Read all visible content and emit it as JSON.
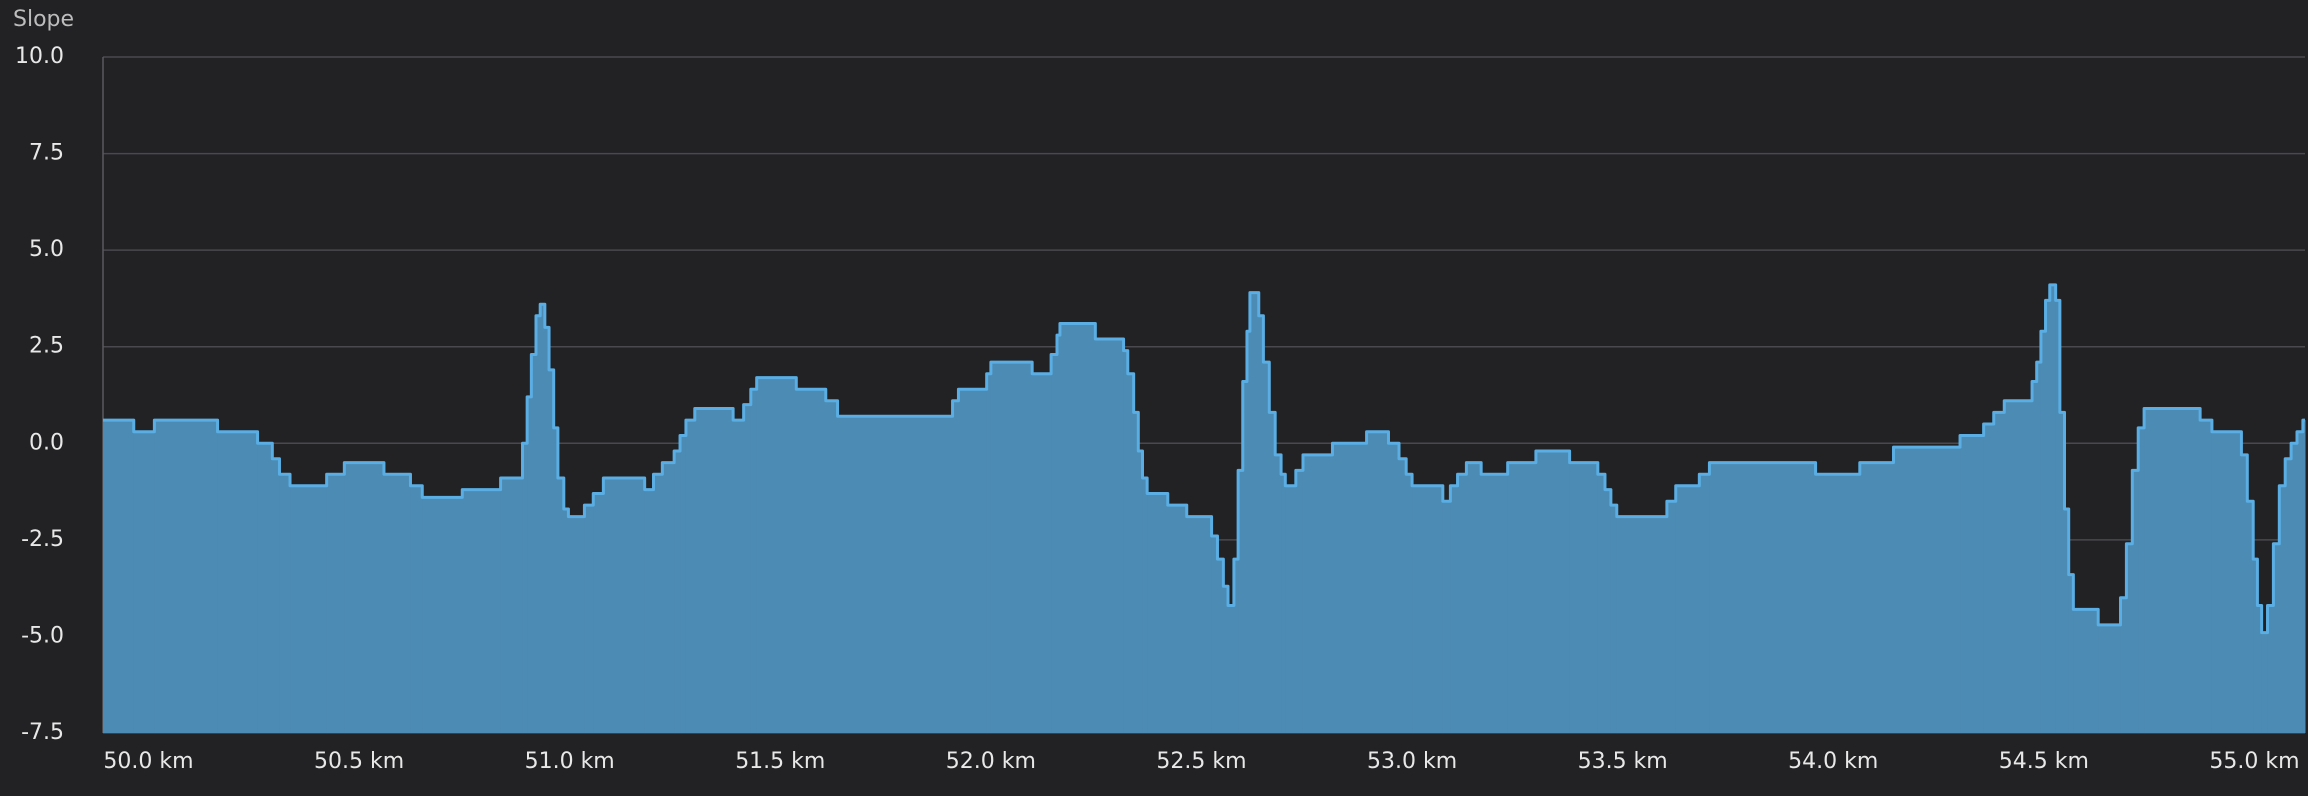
{
  "chart_data": {
    "type": "step-area",
    "ylabel": "Slope",
    "x": [
      49.892,
      49.965,
      50.014,
      50.164,
      50.259,
      50.294,
      50.311,
      50.336,
      50.423,
      50.465,
      50.559,
      50.622,
      50.65,
      50.745,
      50.836,
      50.888,
      50.899,
      50.909,
      50.92,
      50.93,
      50.941,
      50.951,
      50.962,
      50.972,
      50.986,
      50.997,
      51.035,
      51.056,
      51.08,
      51.178,
      51.199,
      51.22,
      51.248,
      51.262,
      51.276,
      51.297,
      51.388,
      51.413,
      51.43,
      51.444,
      51.538,
      51.608,
      51.636,
      51.909,
      51.923,
      51.99,
      52.0,
      52.098,
      52.143,
      52.157,
      52.164,
      52.248,
      52.315,
      52.325,
      52.339,
      52.35,
      52.36,
      52.371,
      52.42,
      52.465,
      52.524,
      52.538,
      52.552,
      52.563,
      52.577,
      52.587,
      52.598,
      52.608,
      52.615,
      52.636,
      52.647,
      52.661,
      52.675,
      52.689,
      52.699,
      52.724,
      52.741,
      52.811,
      52.892,
      52.944,
      52.969,
      52.986,
      53.0,
      53.073,
      53.091,
      53.108,
      53.129,
      53.164,
      53.227,
      53.294,
      53.374,
      53.441,
      53.458,
      53.472,
      53.486,
      53.605,
      53.626,
      53.682,
      53.706,
      53.958,
      54.063,
      54.143,
      54.301,
      54.357,
      54.381,
      54.406,
      54.472,
      54.483,
      54.493,
      54.504,
      54.514,
      54.528,
      54.538,
      54.549,
      54.559,
      54.57,
      54.629,
      54.682,
      54.696,
      54.71,
      54.724,
      54.738,
      54.871,
      54.899,
      54.969,
      54.983,
      54.997,
      55.007,
      55.017,
      55.031,
      55.045,
      55.059,
      55.073,
      55.087,
      55.101,
      55.115
    ],
    "series": [
      {
        "name": "Slope",
        "color": "#5aaee3",
        "fill": "#4c8bb4",
        "values": [
          0.6,
          0.3,
          0.6,
          0.3,
          0.0,
          -0.4,
          -0.8,
          -1.1,
          -0.8,
          -0.5,
          -0.8,
          -1.1,
          -1.4,
          -1.2,
          -0.9,
          0.0,
          1.2,
          2.3,
          3.3,
          3.6,
          3.0,
          1.9,
          0.4,
          -0.9,
          -1.7,
          -1.9,
          -1.6,
          -1.3,
          -0.9,
          -1.2,
          -0.8,
          -0.5,
          -0.2,
          0.2,
          0.6,
          0.9,
          0.6,
          1.0,
          1.4,
          1.7,
          1.4,
          1.1,
          0.7,
          1.1,
          1.4,
          1.8,
          2.1,
          1.8,
          2.3,
          2.8,
          3.1,
          2.7,
          2.4,
          1.8,
          0.8,
          -0.2,
          -0.9,
          -1.3,
          -1.6,
          -1.9,
          -2.4,
          -3.0,
          -3.7,
          -4.2,
          -3.0,
          -0.7,
          1.6,
          2.9,
          3.9,
          3.3,
          2.1,
          0.8,
          -0.3,
          -0.8,
          -1.1,
          -0.7,
          -0.3,
          0.0,
          0.3,
          0.0,
          -0.4,
          -0.8,
          -1.1,
          -1.5,
          -1.1,
          -0.8,
          -0.5,
          -0.8,
          -0.5,
          -0.2,
          -0.5,
          -0.8,
          -1.2,
          -1.6,
          -1.9,
          -1.5,
          -1.1,
          -0.8,
          -0.5,
          -0.8,
          -0.5,
          -0.1,
          0.2,
          0.5,
          0.8,
          1.1,
          1.6,
          2.1,
          2.9,
          3.7,
          4.1,
          3.7,
          0.8,
          -1.7,
          -3.4,
          -4.3,
          -4.7,
          -4.0,
          -2.6,
          -0.7,
          0.4,
          0.9,
          0.6,
          0.3,
          -0.3,
          -1.5,
          -3.0,
          -4.2,
          -4.9,
          -4.2,
          -2.6,
          -1.1,
          -0.4,
          0.0,
          0.3,
          0.6
        ]
      }
    ],
    "xlim": [
      49.892,
      55.12
    ],
    "ylim": [
      -7.5,
      10
    ],
    "xticks": [
      {
        "value": 50,
        "label": "50.0 km"
      },
      {
        "value": 50.5,
        "label": "50.5 km"
      },
      {
        "value": 51,
        "label": "51.0 km"
      },
      {
        "value": 51.5,
        "label": "51.5 km"
      },
      {
        "value": 52,
        "label": "52.0 km"
      },
      {
        "value": 52.5,
        "label": "52.5 km"
      },
      {
        "value": 53,
        "label": "53.0 km"
      },
      {
        "value": 53.5,
        "label": "53.5 km"
      },
      {
        "value": 54,
        "label": "54.0 km"
      },
      {
        "value": 54.5,
        "label": "54.5 km"
      },
      {
        "value": 55,
        "label": "55.0 km"
      }
    ],
    "yticks": [
      {
        "value": -7.5,
        "label": "-7.5"
      },
      {
        "value": -5,
        "label": "-5.0"
      },
      -2.5,
      {
        "value": 0,
        "label": "0.0"
      },
      2.5,
      {
        "value": 5,
        "label": "5.0"
      },
      7.5,
      {
        "value": 10,
        "label": "10.0"
      }
    ],
    "grid": true
  }
}
